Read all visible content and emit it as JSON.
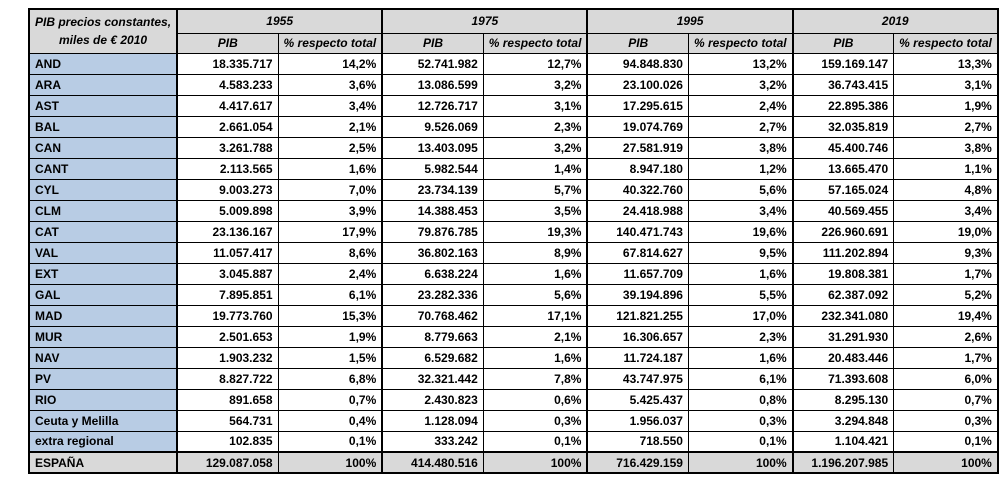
{
  "colors": {
    "header_bg": "#d9d9d9",
    "row_label_bg": "#b8cce4",
    "total_row_bg": "#d9d9d9",
    "border": "#000000",
    "cell_bg": "#ffffff"
  },
  "chart_data": {
    "type": "table",
    "title": "PIB precios constantes, miles de € 2010",
    "corner_line1": "PIB precios constantes,",
    "corner_line2": "miles de € 2010",
    "column_groups": [
      "1955",
      "1975",
      "1995",
      "2019"
    ],
    "sub_columns": [
      "PIB",
      "% respecto total"
    ],
    "rows": [
      {
        "label": "AND",
        "values": [
          "18.335.717",
          "14,2%",
          "52.741.982",
          "12,7%",
          "94.848.830",
          "13,2%",
          "159.169.147",
          "13,3%"
        ]
      },
      {
        "label": "ARA",
        "values": [
          "4.583.233",
          "3,6%",
          "13.086.599",
          "3,2%",
          "23.100.026",
          "3,2%",
          "36.743.415",
          "3,1%"
        ]
      },
      {
        "label": "AST",
        "values": [
          "4.417.617",
          "3,4%",
          "12.726.717",
          "3,1%",
          "17.295.615",
          "2,4%",
          "22.895.386",
          "1,9%"
        ]
      },
      {
        "label": "BAL",
        "values": [
          "2.661.054",
          "2,1%",
          "9.526.069",
          "2,3%",
          "19.074.769",
          "2,7%",
          "32.035.819",
          "2,7%"
        ]
      },
      {
        "label": "CAN",
        "values": [
          "3.261.788",
          "2,5%",
          "13.403.095",
          "3,2%",
          "27.581.919",
          "3,8%",
          "45.400.746",
          "3,8%"
        ]
      },
      {
        "label": "CANT",
        "values": [
          "2.113.565",
          "1,6%",
          "5.982.544",
          "1,4%",
          "8.947.180",
          "1,2%",
          "13.665.470",
          "1,1%"
        ]
      },
      {
        "label": "CYL",
        "values": [
          "9.003.273",
          "7,0%",
          "23.734.139",
          "5,7%",
          "40.322.760",
          "5,6%",
          "57.165.024",
          "4,8%"
        ]
      },
      {
        "label": "CLM",
        "values": [
          "5.009.898",
          "3,9%",
          "14.388.453",
          "3,5%",
          "24.418.988",
          "3,4%",
          "40.569.455",
          "3,4%"
        ]
      },
      {
        "label": "CAT",
        "values": [
          "23.136.167",
          "17,9%",
          "79.876.785",
          "19,3%",
          "140.471.743",
          "19,6%",
          "226.960.691",
          "19,0%"
        ]
      },
      {
        "label": "VAL",
        "values": [
          "11.057.417",
          "8,6%",
          "36.802.163",
          "8,9%",
          "67.814.627",
          "9,5%",
          "111.202.894",
          "9,3%"
        ]
      },
      {
        "label": "EXT",
        "values": [
          "3.045.887",
          "2,4%",
          "6.638.224",
          "1,6%",
          "11.657.709",
          "1,6%",
          "19.808.381",
          "1,7%"
        ]
      },
      {
        "label": "GAL",
        "values": [
          "7.895.851",
          "6,1%",
          "23.282.336",
          "5,6%",
          "39.194.896",
          "5,5%",
          "62.387.092",
          "5,2%"
        ]
      },
      {
        "label": "MAD",
        "values": [
          "19.773.760",
          "15,3%",
          "70.768.462",
          "17,1%",
          "121.821.255",
          "17,0%",
          "232.341.080",
          "19,4%"
        ]
      },
      {
        "label": "MUR",
        "values": [
          "2.501.653",
          "1,9%",
          "8.779.663",
          "2,1%",
          "16.306.657",
          "2,3%",
          "31.291.930",
          "2,6%"
        ]
      },
      {
        "label": "NAV",
        "values": [
          "1.903.232",
          "1,5%",
          "6.529.682",
          "1,6%",
          "11.724.187",
          "1,6%",
          "20.483.446",
          "1,7%"
        ]
      },
      {
        "label": "PV",
        "values": [
          "8.827.722",
          "6,8%",
          "32.321.442",
          "7,8%",
          "43.747.975",
          "6,1%",
          "71.393.608",
          "6,0%"
        ]
      },
      {
        "label": "RIO",
        "values": [
          "891.658",
          "0,7%",
          "2.430.823",
          "0,6%",
          "5.425.437",
          "0,8%",
          "8.295.130",
          "0,7%"
        ]
      },
      {
        "label": "Ceuta y Melilla",
        "values": [
          "564.731",
          "0,4%",
          "1.128.094",
          "0,3%",
          "1.956.037",
          "0,3%",
          "3.294.848",
          "0,3%"
        ]
      },
      {
        "label": "extra regional",
        "values": [
          "102.835",
          "0,1%",
          "333.242",
          "0,1%",
          "718.550",
          "0,1%",
          "1.104.421",
          "0,1%"
        ]
      }
    ],
    "total_row": {
      "label": "ESPAÑA",
      "values": [
        "129.087.058",
        "100%",
        "414.480.516",
        "100%",
        "716.429.159",
        "100%",
        "1.196.207.985",
        "100%"
      ]
    }
  }
}
